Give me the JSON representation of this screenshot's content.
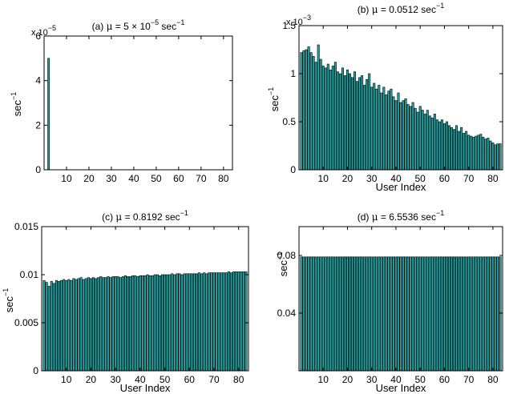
{
  "chart_data": [
    {
      "type": "bar",
      "title": "(a) μ = 5 × 10⁻⁵ sec⁻¹",
      "title_parts": {
        "pre": "(a) ",
        "mu": "μ",
        "eq": " = 5 × 10",
        "exp": "−5",
        "unit": " sec",
        "unit_exp": "−1"
      },
      "xlabel": "",
      "ylabel": "sec",
      "ylabel_exp": "−1",
      "y_multiplier": {
        "base": "x 10",
        "exp": "−5"
      },
      "xlim": [
        0,
        84
      ],
      "ylim": [
        0,
        6
      ],
      "xticks": [
        "10",
        "20",
        "30",
        "40",
        "50",
        "60",
        "70",
        "80"
      ],
      "yticks": [
        "0",
        "2",
        "4",
        "6"
      ],
      "bar_color": "#1fa7a7",
      "bars": [
        {
          "x": 2,
          "value": 5.0
        }
      ]
    },
    {
      "type": "bar",
      "title": "(b) μ = 0.0512 sec⁻¹",
      "title_parts": {
        "pre": "(b) ",
        "mu": "μ",
        "eq": " = 0.0512",
        "exp": "",
        "unit": " sec",
        "unit_exp": "−1"
      },
      "xlabel": "User Index",
      "ylabel": "sec",
      "ylabel_exp": "−1",
      "y_multiplier": {
        "base": "x 10",
        "exp": "−3"
      },
      "xlim": [
        0,
        84
      ],
      "ylim": [
        0,
        1.5
      ],
      "xticks": [
        "10",
        "20",
        "30",
        "40",
        "50",
        "60",
        "70",
        "80"
      ],
      "yticks": [
        "0",
        "0.5",
        "1",
        "1.5"
      ],
      "bar_color": "#1fa7a7",
      "values": [
        1.22,
        1.24,
        1.25,
        1.28,
        1.22,
        1.18,
        1.12,
        1.3,
        1.15,
        1.08,
        1.06,
        1.1,
        1.04,
        1.08,
        1.12,
        1.02,
        1.0,
        1.06,
        0.98,
        1.04,
        1.0,
        0.96,
        1.02,
        0.92,
        0.96,
        0.98,
        0.88,
        0.94,
        1.0,
        0.86,
        0.9,
        0.84,
        0.88,
        0.8,
        0.86,
        0.78,
        0.82,
        0.84,
        0.76,
        0.72,
        0.8,
        0.7,
        0.72,
        0.74,
        0.68,
        0.66,
        0.7,
        0.64,
        0.6,
        0.66,
        0.62,
        0.58,
        0.62,
        0.56,
        0.54,
        0.58,
        0.52,
        0.5,
        0.52,
        0.48,
        0.5,
        0.46,
        0.44,
        0.42,
        0.46,
        0.4,
        0.44,
        0.38,
        0.4,
        0.36,
        0.35,
        0.34,
        0.35,
        0.36,
        0.37,
        0.34,
        0.32,
        0.33,
        0.3,
        0.28,
        0.26,
        0.27,
        0.27
      ]
    },
    {
      "type": "bar",
      "title": "(c) μ = 0.8192 sec⁻¹",
      "title_parts": {
        "pre": "(c) ",
        "mu": "μ",
        "eq": " = 0.8192",
        "exp": "",
        "unit": " sec",
        "unit_exp": "−1"
      },
      "xlabel": "User Index",
      "ylabel": "sec",
      "ylabel_exp": "−1",
      "xlim": [
        0,
        84
      ],
      "ylim": [
        0,
        0.015
      ],
      "xticks": [
        "10",
        "20",
        "30",
        "40",
        "50",
        "60",
        "70",
        "80"
      ],
      "yticks": [
        "0",
        "0.005",
        "0.01",
        "0.015"
      ],
      "bar_color": "#1fa7a7",
      "values": [
        0.0094,
        0.0092,
        0.0088,
        0.0093,
        0.0091,
        0.0094,
        0.0093,
        0.0094,
        0.0095,
        0.0094,
        0.0095,
        0.0094,
        0.0096,
        0.0095,
        0.0096,
        0.0097,
        0.0095,
        0.0096,
        0.0097,
        0.0096,
        0.0097,
        0.0096,
        0.0097,
        0.0098,
        0.0097,
        0.0097,
        0.0098,
        0.0097,
        0.0098,
        0.0098,
        0.0098,
        0.0097,
        0.0098,
        0.0099,
        0.0098,
        0.0098,
        0.0099,
        0.0099,
        0.0098,
        0.0099,
        0.0099,
        0.0099,
        0.01,
        0.0099,
        0.0099,
        0.01,
        0.01,
        0.0099,
        0.01,
        0.01,
        0.01,
        0.01,
        0.0101,
        0.01,
        0.0101,
        0.0101,
        0.01,
        0.0101,
        0.0101,
        0.0101,
        0.0101,
        0.0101,
        0.0101,
        0.0102,
        0.0101,
        0.0102,
        0.0101,
        0.0102,
        0.0102,
        0.0102,
        0.0102,
        0.0102,
        0.0102,
        0.0102,
        0.0102,
        0.0103,
        0.0102,
        0.0103,
        0.0103,
        0.0103,
        0.0103,
        0.0103,
        0.0103
      ]
    },
    {
      "type": "bar",
      "title": "(d) μ = 6.5536 sec⁻¹",
      "title_parts": {
        "pre": "(d) ",
        "mu": "μ",
        "eq": " = 6.5536",
        "exp": "",
        "unit": " sec",
        "unit_exp": "−1"
      },
      "xlabel": "User Index",
      "ylabel": "sec",
      "ylabel_exp": "−1",
      "xlim": [
        0,
        84
      ],
      "ylim": [
        0,
        0.1
      ],
      "xticks": [
        "10",
        "20",
        "30",
        "40",
        "50",
        "60",
        "70",
        "80"
      ],
      "yticks": [
        "0.04",
        "0.08"
      ],
      "ytick_values": [
        0.04,
        0.08
      ],
      "bar_color": "#1fa7a7",
      "constant_value": 0.079,
      "n_bars": 83
    }
  ]
}
